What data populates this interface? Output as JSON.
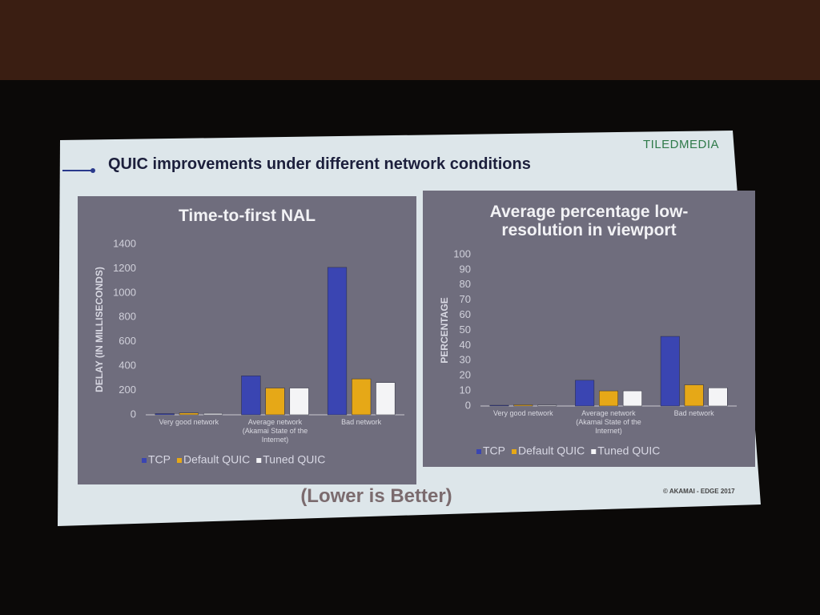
{
  "slide": {
    "brand": "TILEDMEDIA",
    "title": "QUIC improvements under different network conditions",
    "footer": "(Lower is Better)",
    "copyright": "© AKAMAI - EDGE 2017"
  },
  "chart_data": [
    {
      "type": "bar",
      "title": "Time-to-first NAL",
      "y_label": "DELAY (IN MILLISECONDS)",
      "categories": [
        "Very good network",
        "Average network (Akamai State of the Internet)",
        "Bad network"
      ],
      "series": [
        {
          "name": "TCP",
          "color": "#3a45b2",
          "values": [
            10,
            320,
            1210
          ]
        },
        {
          "name": "Default QUIC",
          "color": "#e6a817",
          "values": [
            15,
            220,
            295
          ]
        },
        {
          "name": "Tuned QUIC",
          "color": "#f4f4f6",
          "values": [
            12,
            220,
            265
          ]
        }
      ],
      "ylim": [
        0,
        1400
      ],
      "yticks": [
        0,
        200,
        400,
        600,
        800,
        1000,
        1200,
        1400
      ]
    },
    {
      "type": "bar",
      "title": "Average percentage low-resolution in viewport",
      "y_label": "PERCENTAGE",
      "categories": [
        "Very good network",
        "Average network (Akamai State of the Internet)",
        "Bad network"
      ],
      "series": [
        {
          "name": "TCP",
          "color": "#3a45b2",
          "values": [
            0.5,
            17,
            46
          ]
        },
        {
          "name": "Default QUIC",
          "color": "#e6a817",
          "values": [
            0.8,
            10,
            14
          ]
        },
        {
          "name": "Tuned QUIC",
          "color": "#f4f4f6",
          "values": [
            0.6,
            10,
            12
          ]
        }
      ],
      "ylim": [
        0,
        100
      ],
      "yticks": [
        0,
        10,
        20,
        30,
        40,
        50,
        60,
        70,
        80,
        90,
        100
      ]
    }
  ]
}
